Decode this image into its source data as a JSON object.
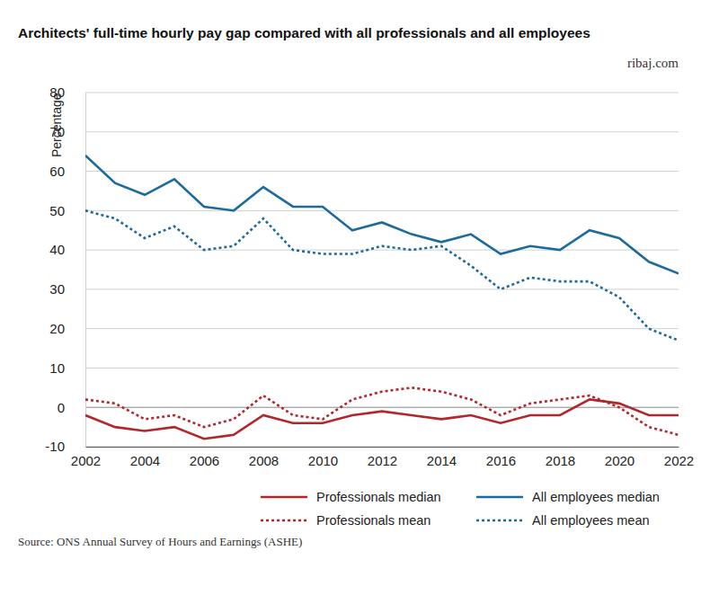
{
  "chart_data": {
    "type": "line",
    "title": "Architects' full-time hourly pay gap compared with all professionals and all employees",
    "ylabel": "Percentage",
    "annotations": [
      "ribaj.com",
      "Source: ONS Annual Survey of Hours and Earnings (ASHE)"
    ],
    "x": [
      2002,
      2003,
      2004,
      2005,
      2006,
      2007,
      2008,
      2009,
      2010,
      2011,
      2012,
      2013,
      2014,
      2015,
      2016,
      2017,
      2018,
      2019,
      2020,
      2021,
      2022
    ],
    "xlim": [
      2002,
      2022
    ],
    "xticks": [
      2002,
      2004,
      2006,
      2008,
      2010,
      2012,
      2014,
      2016,
      2018,
      2020,
      2022
    ],
    "ylim": [
      -10,
      80
    ],
    "yticks": [
      -10,
      0,
      10,
      20,
      30,
      40,
      50,
      60,
      70,
      80
    ],
    "grid": true,
    "legend": "bottom",
    "series": [
      {
        "name": "Professionals median",
        "color": "#b3262b",
        "line_style": "solid",
        "values": [
          -2,
          -5,
          -6,
          -5,
          -8,
          -7,
          -2,
          -4,
          -4,
          -2,
          -1,
          -2,
          -3,
          -2,
          -4,
          -2,
          -2,
          2,
          1,
          -2,
          -2
        ]
      },
      {
        "name": "Professionals mean",
        "color": "#b3262b",
        "line_style": "dotted",
        "values": [
          2,
          1,
          -3,
          -2,
          -5,
          -3,
          3,
          -2,
          -3,
          2,
          4,
          5,
          4,
          2,
          -2,
          1,
          2,
          3,
          0,
          -5,
          -7
        ]
      },
      {
        "name": "All employees median",
        "color": "#1d6b9c",
        "line_style": "solid",
        "values": [
          64,
          57,
          54,
          58,
          51,
          50,
          56,
          51,
          51,
          45,
          47,
          44,
          42,
          44,
          39,
          41,
          40,
          45,
          43,
          37,
          34
        ]
      },
      {
        "name": "All employees mean",
        "color": "#1d6b9c",
        "line_style": "dotted",
        "values": [
          50,
          48,
          43,
          46,
          40,
          41,
          48,
          40,
          39,
          39,
          41,
          40,
          41,
          36,
          30,
          33,
          32,
          32,
          28,
          20,
          17
        ]
      }
    ]
  }
}
